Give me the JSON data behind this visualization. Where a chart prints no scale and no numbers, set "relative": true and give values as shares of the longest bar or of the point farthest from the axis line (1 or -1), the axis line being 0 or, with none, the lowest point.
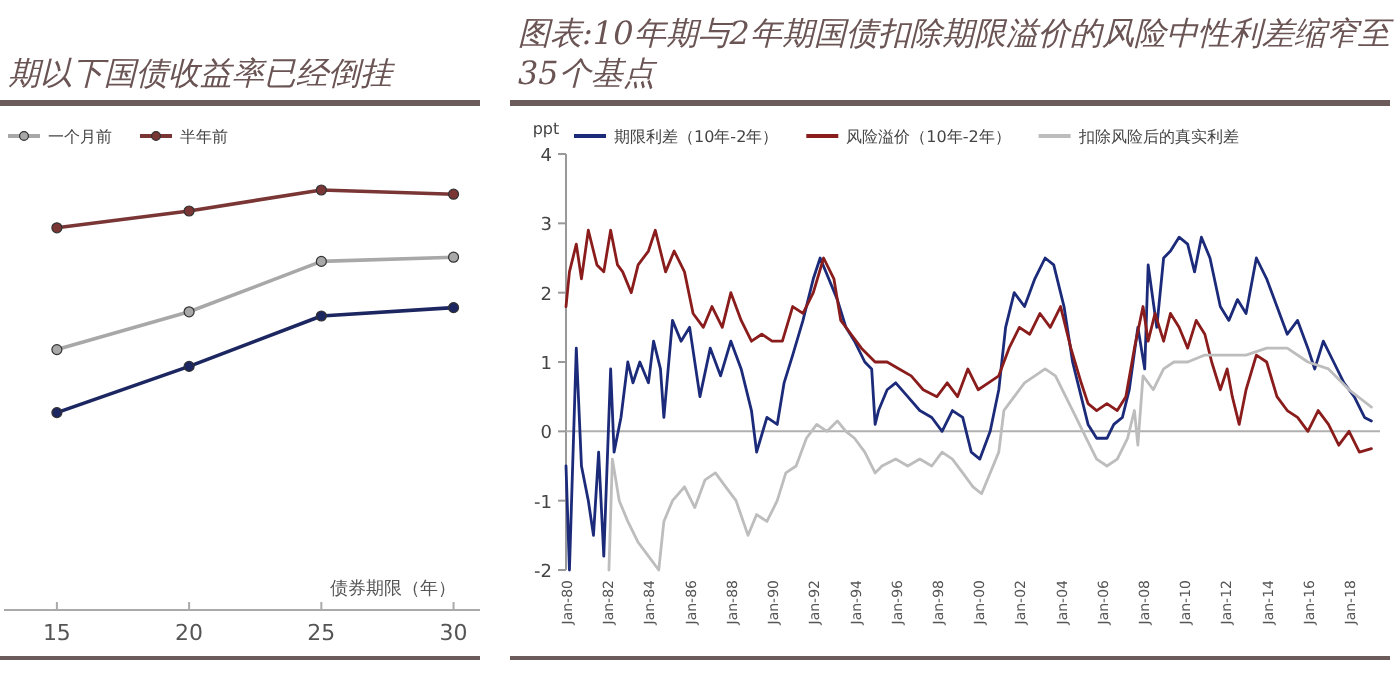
{
  "chart_data": [
    {
      "type": "line",
      "title": "期以下国债收益率已经倒挂",
      "xlabel": "债券期限（年）",
      "relative": true,
      "marker": "circle",
      "legend": "top left",
      "x": [
        15,
        20,
        25,
        30
      ],
      "xlim": [
        13,
        31
      ],
      "xticks": [
        15,
        20,
        25,
        30
      ],
      "series": [
        {
          "name": "一个月前",
          "color": "#a8a8a8",
          "values": [
            0.62,
            0.71,
            0.83,
            0.84
          ]
        },
        {
          "name": "半年前",
          "color": "#7a3535",
          "values": [
            0.91,
            0.95,
            1.0,
            0.99
          ]
        },
        {
          "color": "#1c2660",
          "values": [
            0.47,
            0.58,
            0.7,
            0.72
          ]
        }
      ]
    },
    {
      "type": "line",
      "title": "图表:10年期与2年期国债扣除期限溢价的风险中性利差缩窄至35个基点",
      "ylabel": "ppt",
      "legend": "top",
      "xlim": [
        "1980-01",
        "2019-07"
      ],
      "ylim": [
        -2,
        4
      ],
      "yticks": [
        -2,
        -1,
        0,
        1,
        2,
        3,
        4
      ],
      "xticks": [
        {
          "value": "1980-01",
          "label": "Jan-80"
        },
        {
          "value": "1982-01",
          "label": "Jan-82"
        },
        {
          "value": "1984-01",
          "label": "Jan-84"
        },
        {
          "value": "1986-01",
          "label": "Jan-86"
        },
        {
          "value": "1988-01",
          "label": "Jan-88"
        },
        {
          "value": "1990-01",
          "label": "Jan-90"
        },
        {
          "value": "1992-01",
          "label": "Jan-92"
        },
        {
          "value": "1994-01",
          "label": "Jan-94"
        },
        {
          "value": "1996-01",
          "label": "Jan-96"
        },
        {
          "value": "1998-01",
          "label": "Jan-98"
        },
        {
          "value": "2000-01",
          "label": "Jan-00"
        },
        {
          "value": "2002-01",
          "label": "Jan-02"
        },
        {
          "value": "2004-01",
          "label": "Jan-04"
        },
        {
          "value": "2006-01",
          "label": "Jan-06"
        },
        {
          "value": "2008-01",
          "label": "Jan-08"
        },
        {
          "value": "2010-01",
          "label": "Jan-10"
        },
        {
          "value": "2012-01",
          "label": "Jan-12"
        },
        {
          "value": "2014-01",
          "label": "Jan-14"
        },
        {
          "value": "2016-01",
          "label": "Jan-16"
        },
        {
          "value": "2018-01",
          "label": "Jan-18"
        }
      ],
      "ref_lines": [
        {
          "axis": "y",
          "value": 0,
          "color": "#b0b0b0"
        }
      ],
      "series": [
        {
          "name": "期限利差（10年-2年）",
          "color": "#1c2a7a",
          "x": [
            "1980-01",
            "1980-03",
            "1980-07",
            "1980-10",
            "1981-02",
            "1981-05",
            "1981-08",
            "1981-11",
            "1982-03",
            "1982-05",
            "1982-09",
            "1983-01",
            "1983-04",
            "1983-08",
            "1984-01",
            "1984-04",
            "1984-08",
            "1984-10",
            "1985-03",
            "1985-08",
            "1986-01",
            "1986-07",
            "1987-01",
            "1987-07",
            "1988-01",
            "1988-07",
            "1989-01",
            "1989-04",
            "1989-10",
            "1990-04",
            "1990-08",
            "1991-01",
            "1991-07",
            "1992-01",
            "1992-05",
            "1992-10",
            "1993-03",
            "1993-08",
            "1994-01",
            "1994-07",
            "1994-11",
            "1995-01",
            "1995-03",
            "1995-08",
            "1996-01",
            "1996-08",
            "1997-03",
            "1997-10",
            "1998-04",
            "1998-10",
            "1999-04",
            "1999-09",
            "2000-02",
            "2000-08",
            "2001-01",
            "2001-05",
            "2001-10",
            "2002-04",
            "2002-10",
            "2003-04",
            "2003-09",
            "2004-03",
            "2004-08",
            "2005-01",
            "2005-05",
            "2005-10",
            "2006-04",
            "2006-08",
            "2007-01",
            "2007-05",
            "2007-10",
            "2008-02",
            "2008-04",
            "2008-09",
            "2009-01",
            "2009-05",
            "2009-10",
            "2010-03",
            "2010-07",
            "2010-11",
            "2011-04",
            "2011-10",
            "2012-03",
            "2012-08",
            "2013-01",
            "2013-07",
            "2014-01",
            "2014-07",
            "2015-01",
            "2015-07",
            "2016-01",
            "2016-05",
            "2016-10",
            "2017-04",
            "2017-10",
            "2018-04",
            "2018-10",
            "2019-02"
          ],
          "values": [
            -0.5,
            -2.0,
            1.2,
            -0.5,
            -1.0,
            -1.5,
            -0.3,
            -1.8,
            0.9,
            -0.3,
            0.2,
            1.0,
            0.7,
            1.0,
            0.7,
            1.3,
            0.9,
            0.2,
            1.6,
            1.3,
            1.5,
            0.5,
            1.2,
            0.8,
            1.3,
            0.9,
            0.3,
            -0.3,
            0.2,
            0.1,
            0.7,
            1.1,
            1.6,
            2.2,
            2.5,
            2.2,
            1.9,
            1.5,
            1.3,
            1.0,
            0.9,
            0.1,
            0.3,
            0.6,
            0.7,
            0.5,
            0.3,
            0.2,
            0.0,
            0.3,
            0.2,
            -0.3,
            -0.4,
            0.0,
            0.6,
            1.5,
            2.0,
            1.8,
            2.2,
            2.5,
            2.4,
            1.8,
            1.0,
            0.5,
            0.1,
            -0.1,
            -0.1,
            0.1,
            0.2,
            0.6,
            1.5,
            0.9,
            2.4,
            1.5,
            2.5,
            2.6,
            2.8,
            2.7,
            2.3,
            2.8,
            2.5,
            1.8,
            1.6,
            1.9,
            1.7,
            2.5,
            2.2,
            1.8,
            1.4,
            1.6,
            1.2,
            0.9,
            1.3,
            1.0,
            0.7,
            0.5,
            0.2,
            0.15
          ]
        },
        {
          "name": "风险溢价（10年-2年）",
          "color": "#8a1c1c",
          "x": [
            "1980-01",
            "1980-03",
            "1980-07",
            "1980-10",
            "1981-02",
            "1981-07",
            "1981-11",
            "1982-03",
            "1982-07",
            "1982-10",
            "1983-03",
            "1983-07",
            "1984-01",
            "1984-05",
            "1984-11",
            "1985-04",
            "1985-10",
            "1986-03",
            "1986-09",
            "1987-02",
            "1987-08",
            "1988-01",
            "1988-07",
            "1989-01",
            "1989-07",
            "1990-01",
            "1990-07",
            "1991-01",
            "1991-07",
            "1992-01",
            "1992-07",
            "1993-01",
            "1993-05",
            "1993-11",
            "1994-05",
            "1995-01",
            "1995-08",
            "1996-03",
            "1996-10",
            "1997-05",
            "1998-01",
            "1998-07",
            "1999-01",
            "1999-07",
            "2000-01",
            "2000-07",
            "2001-01",
            "2001-07",
            "2002-01",
            "2002-07",
            "2003-01",
            "2003-07",
            "2004-01",
            "2004-07",
            "2005-01",
            "2005-05",
            "2005-10",
            "2006-04",
            "2006-10",
            "2007-03",
            "2007-08",
            "2008-01",
            "2008-04",
            "2008-08",
            "2009-01",
            "2009-05",
            "2009-10",
            "2010-03",
            "2010-08",
            "2011-01",
            "2011-05",
            "2011-10",
            "2012-02",
            "2012-05",
            "2012-09",
            "2013-01",
            "2013-07",
            "2014-01",
            "2014-07",
            "2015-01",
            "2015-07",
            "2016-01",
            "2016-07",
            "2017-01",
            "2017-07",
            "2018-01",
            "2018-07",
            "2019-02"
          ],
          "values": [
            1.8,
            2.3,
            2.7,
            2.2,
            2.9,
            2.4,
            2.3,
            2.9,
            2.4,
            2.3,
            2.0,
            2.4,
            2.6,
            2.9,
            2.3,
            2.6,
            2.3,
            1.7,
            1.5,
            1.8,
            1.5,
            2.0,
            1.6,
            1.3,
            1.4,
            1.3,
            1.3,
            1.8,
            1.7,
            2.0,
            2.5,
            2.2,
            1.6,
            1.4,
            1.2,
            1.0,
            1.0,
            0.9,
            0.8,
            0.6,
            0.5,
            0.7,
            0.5,
            0.9,
            0.6,
            0.7,
            0.8,
            1.2,
            1.5,
            1.4,
            1.7,
            1.5,
            1.8,
            1.2,
            0.7,
            0.4,
            0.3,
            0.4,
            0.3,
            0.5,
            1.2,
            1.8,
            1.3,
            1.7,
            1.3,
            1.7,
            1.5,
            1.2,
            1.6,
            1.4,
            1.0,
            0.6,
            0.9,
            0.5,
            0.1,
            0.6,
            1.1,
            1.0,
            0.5,
            0.3,
            0.2,
            0.0,
            0.3,
            0.1,
            -0.2,
            0.0,
            -0.3,
            -0.25
          ]
        },
        {
          "name": "扣除风险后的真实利差",
          "color": "#bdbdbd",
          "x": [
            "1982-02",
            "1982-04",
            "1982-08",
            "1983-01",
            "1983-07",
            "1984-01",
            "1984-07",
            "1984-10",
            "1985-03",
            "1985-10",
            "1986-04",
            "1986-10",
            "1987-04",
            "1987-10",
            "1988-04",
            "1988-11",
            "1989-04",
            "1989-10",
            "1990-04",
            "1990-09",
            "1991-03",
            "1991-09",
            "1992-03",
            "1992-09",
            "1993-03",
            "1993-08",
            "1994-01",
            "1994-07",
            "1995-01",
            "1995-05",
            "1996-01",
            "1996-08",
            "1997-03",
            "1997-10",
            "1998-04",
            "1998-10",
            "1999-04",
            "1999-10",
            "2000-03",
            "2000-08",
            "2001-01",
            "2001-04",
            "2001-10",
            "2002-04",
            "2002-10",
            "2003-04",
            "2003-10",
            "2004-04",
            "2004-10",
            "2005-04",
            "2005-10",
            "2006-04",
            "2006-10",
            "2007-04",
            "2007-08",
            "2007-10",
            "2008-01",
            "2008-07",
            "2009-01",
            "2009-07",
            "2010-03",
            "2011-01",
            "2012-01",
            "2013-01",
            "2014-01",
            "2015-01",
            "2016-01",
            "2017-01",
            "2018-01",
            "2019-02"
          ],
          "values": [
            -2.0,
            -0.4,
            -1.0,
            -1.3,
            -1.6,
            -1.8,
            -2.0,
            -1.3,
            -1.0,
            -0.8,
            -1.1,
            -0.7,
            -0.6,
            -0.8,
            -1.0,
            -1.5,
            -1.2,
            -1.3,
            -1.0,
            -0.6,
            -0.5,
            -0.1,
            0.1,
            0.0,
            0.15,
            0.0,
            -0.1,
            -0.3,
            -0.6,
            -0.5,
            -0.4,
            -0.5,
            -0.4,
            -0.5,
            -0.3,
            -0.4,
            -0.6,
            -0.8,
            -0.9,
            -0.6,
            -0.3,
            0.3,
            0.5,
            0.7,
            0.8,
            0.9,
            0.8,
            0.5,
            0.2,
            -0.1,
            -0.4,
            -0.5,
            -0.4,
            -0.1,
            0.3,
            -0.2,
            0.8,
            0.6,
            0.9,
            1.0,
            1.0,
            1.1,
            1.1,
            1.1,
            1.2,
            1.2,
            1.0,
            0.9,
            0.6,
            0.35
          ]
        }
      ]
    }
  ]
}
